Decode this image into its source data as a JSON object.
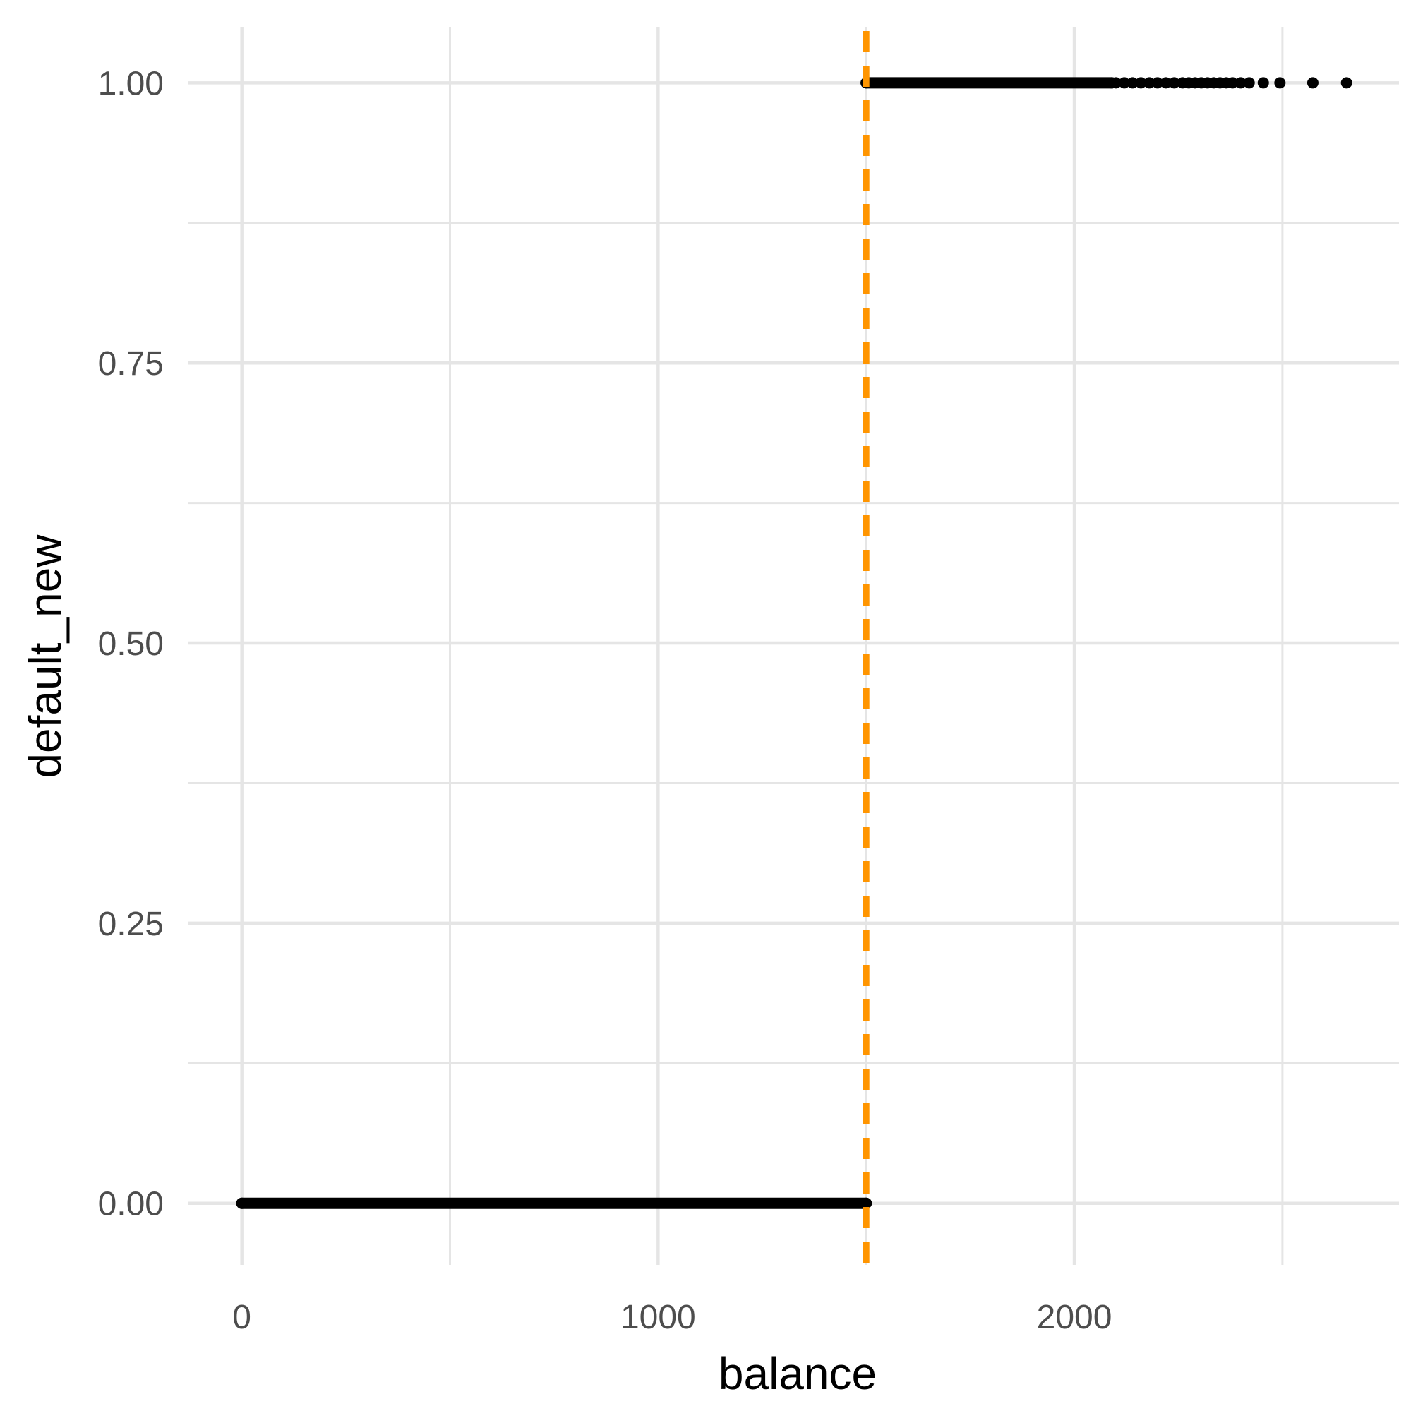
{
  "chart_data": {
    "type": "scatter",
    "title": "",
    "xlabel": "balance",
    "ylabel": "default_new",
    "xlim": [
      -130,
      2780
    ],
    "ylim": [
      -0.055,
      1.05
    ],
    "x_major_ticks": [
      0,
      1000,
      2000
    ],
    "x_tick_labels": [
      "0",
      "1000",
      "2000"
    ],
    "x_minor_ticks": [
      500,
      1500,
      2500
    ],
    "y_major_ticks": [
      0,
      0.25,
      0.5,
      0.75,
      1.0
    ],
    "y_tick_labels": [
      "0.00",
      "0.25",
      "0.50",
      "0.75",
      "1.00"
    ],
    "y_minor_ticks": [
      0.125,
      0.375,
      0.625,
      0.875
    ],
    "grid": true,
    "threshold_line": {
      "x": 1500,
      "style": "dashed",
      "color": "#FF9500"
    },
    "point_color": "#000000",
    "series": [
      {
        "group": "default_new = 0",
        "dense_x_range": [
          0,
          1500
        ],
        "y": 0
      },
      {
        "group": "default_new = 1",
        "dense_x_range": [
          1500,
          2090
        ],
        "y": 1,
        "sparse_x": [
          2100,
          2120,
          2140,
          2160,
          2180,
          2200,
          2220,
          2240,
          2260,
          2275,
          2290,
          2305,
          2320,
          2335,
          2350,
          2365,
          2380,
          2400,
          2420,
          2454,
          2494,
          2573,
          2654
        ]
      }
    ]
  }
}
